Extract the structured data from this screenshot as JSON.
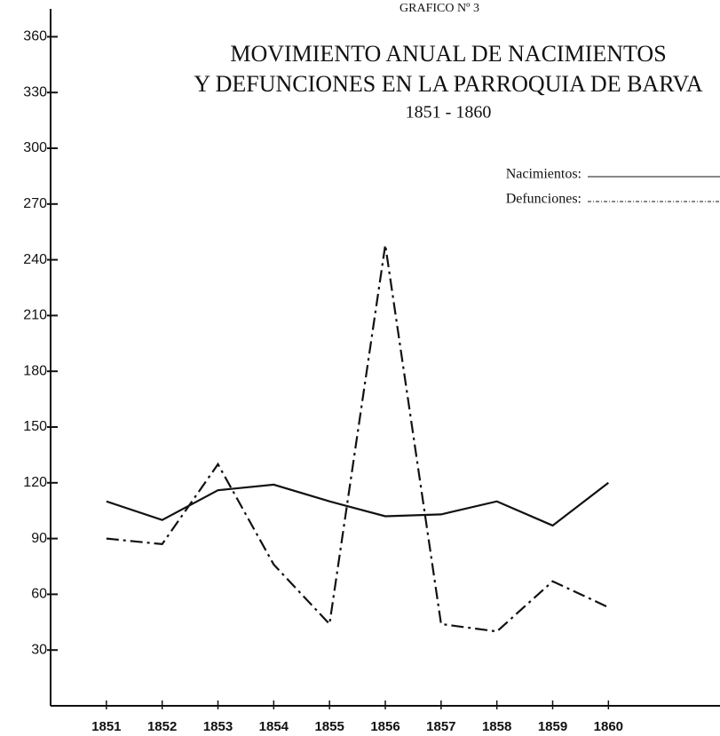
{
  "chart_data": {
    "type": "line",
    "header": "GRAFICO Nº 3",
    "title": [
      "MOVIMIENTO ANUAL DE NACIMIENTOS",
      "Y DEFUNCIONES EN LA PARROQUIA DE BARVA"
    ],
    "subtitle": "1851 - 1860",
    "x": [
      1851,
      1852,
      1853,
      1854,
      1855,
      1856,
      1857,
      1858,
      1859,
      1860
    ],
    "series": [
      {
        "name": "Nacimientos:",
        "color": "#111111",
        "style": "solid",
        "values": [
          110,
          100,
          116,
          119,
          110,
          102,
          103,
          110,
          97,
          120
        ]
      },
      {
        "name": "Defunciones:",
        "color": "#111111",
        "style": "dashdot",
        "values": [
          90,
          87,
          130,
          76,
          44,
          248,
          44,
          40,
          67,
          53
        ]
      }
    ],
    "xlim": [
      1850,
      1862
    ],
    "xticks": [
      1851,
      1852,
      1853,
      1854,
      1855,
      1856,
      1857,
      1858,
      1859,
      1860
    ],
    "ylim": [
      0,
      375
    ],
    "yticks": [
      30,
      60,
      90,
      120,
      150,
      180,
      210,
      240,
      270,
      300,
      330,
      360
    ],
    "legend": "upper right"
  }
}
